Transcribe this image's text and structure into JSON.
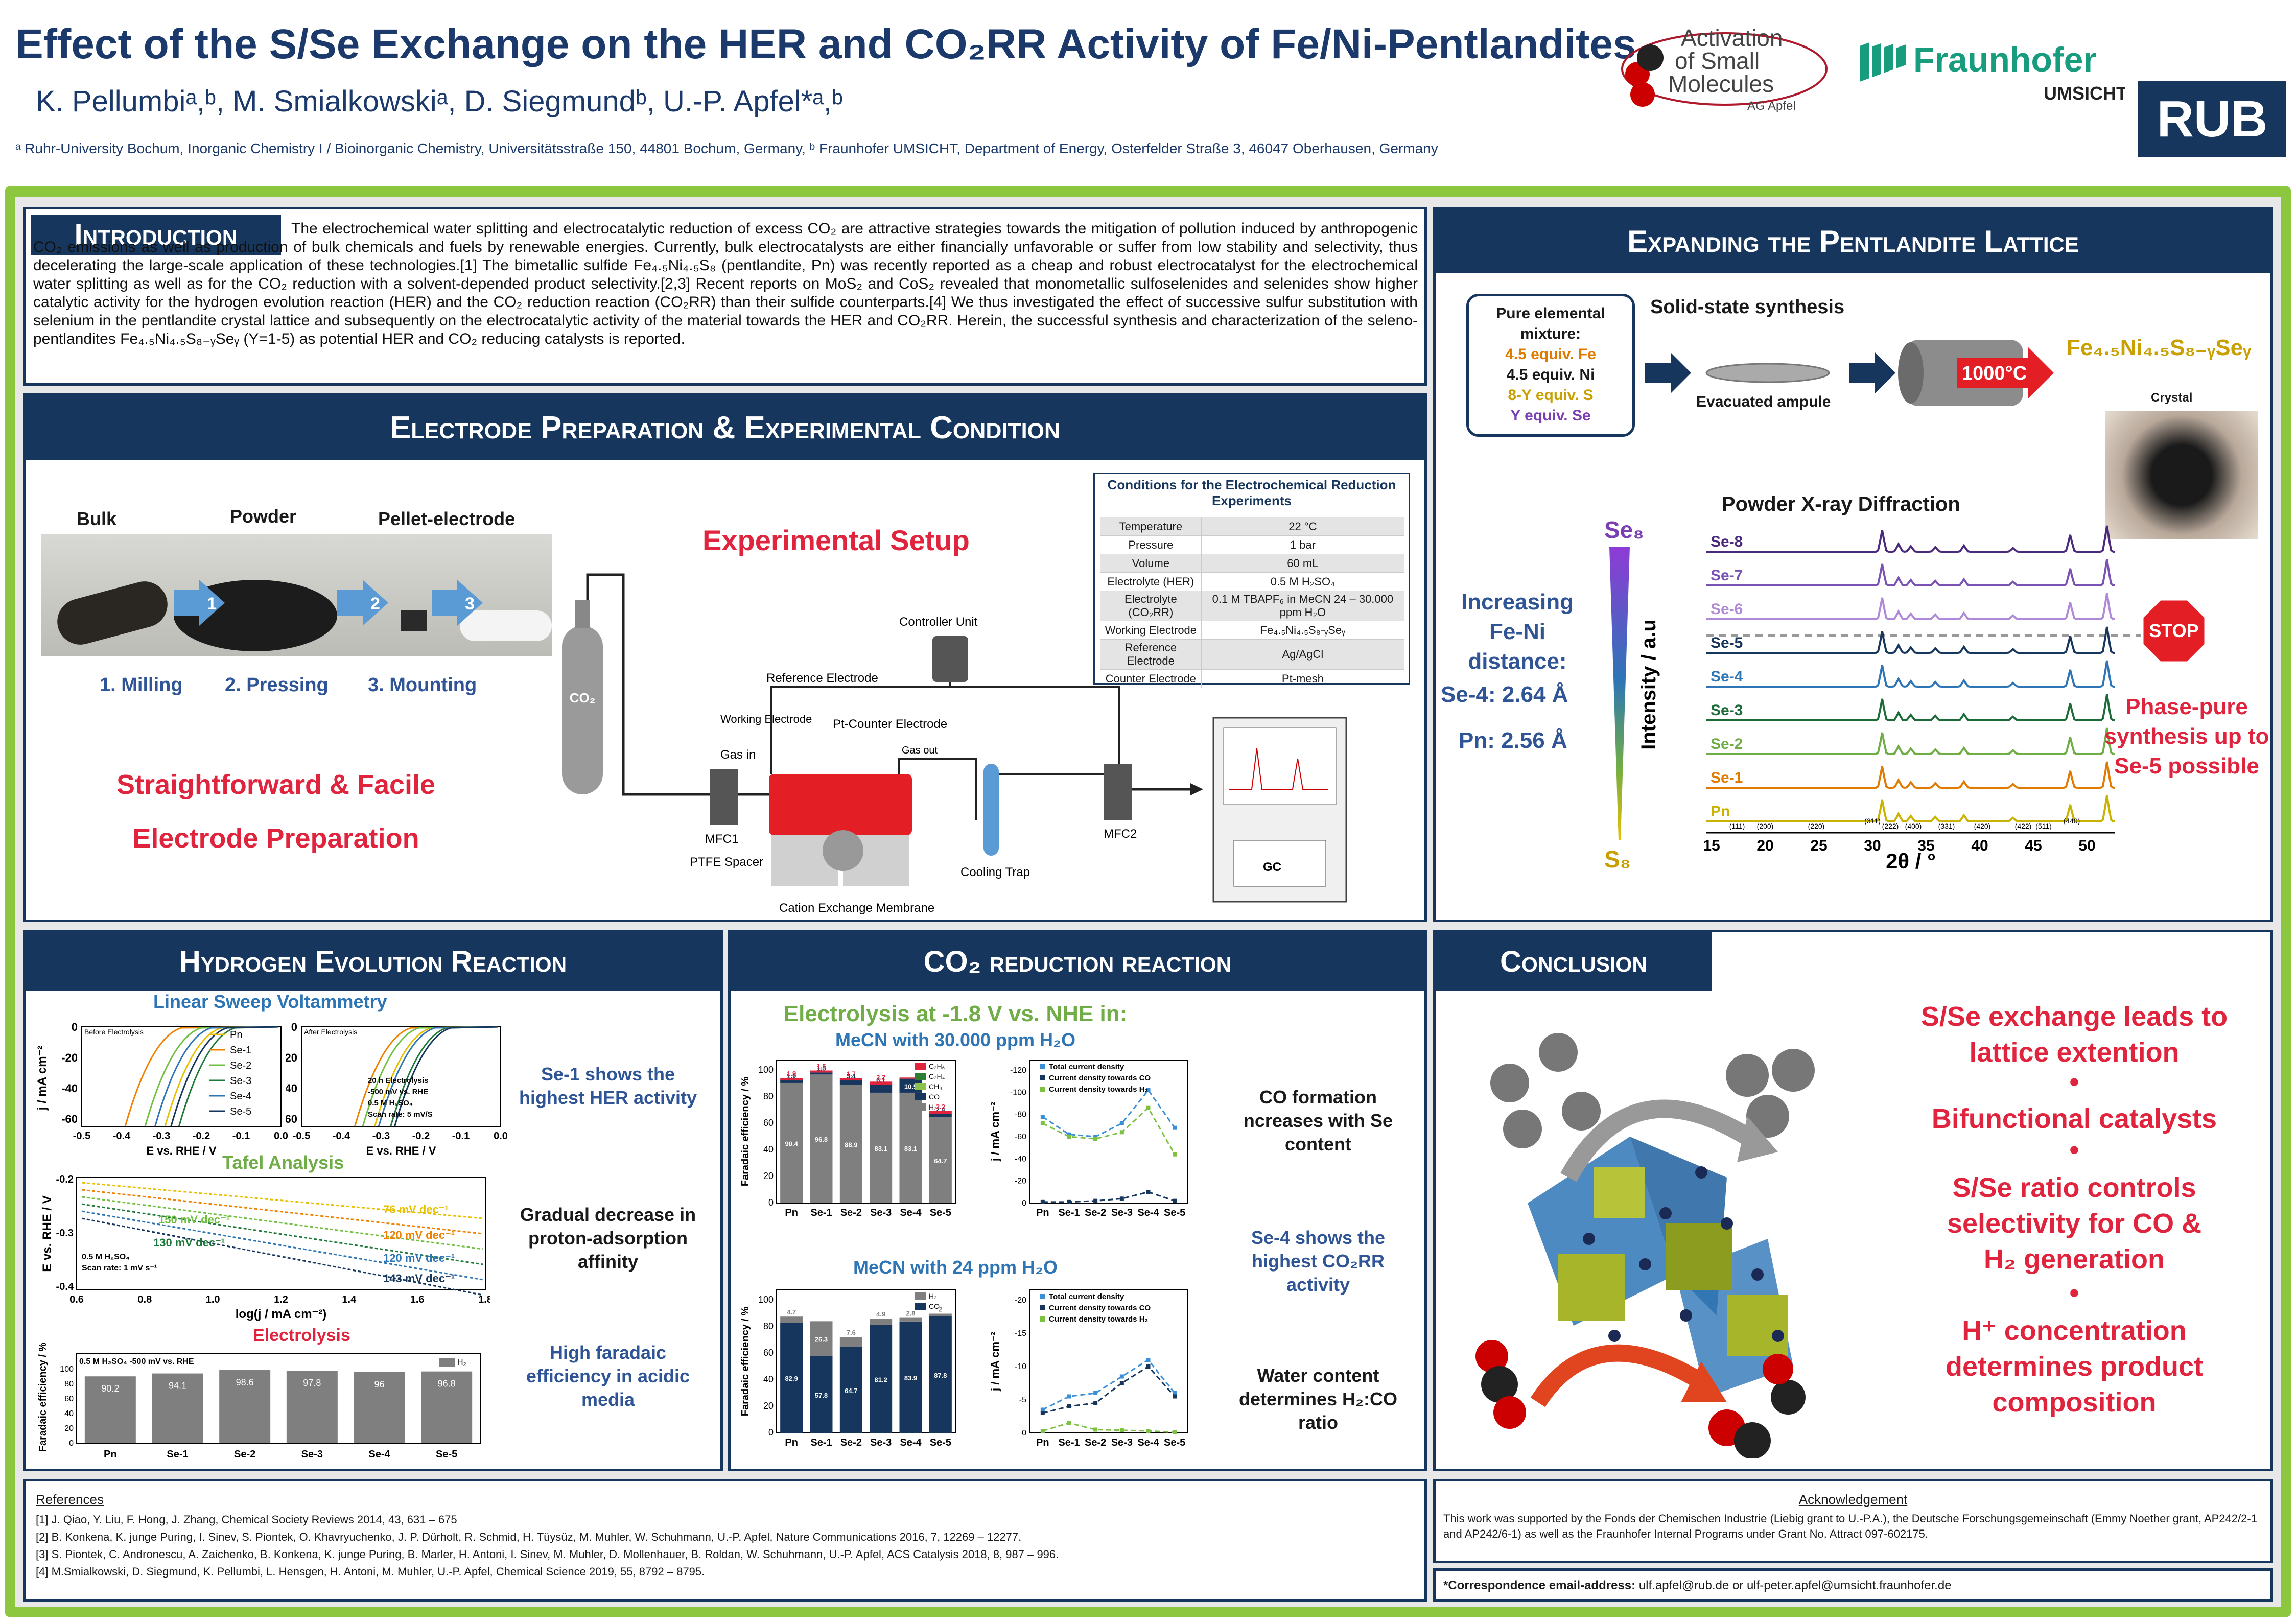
{
  "header": {
    "title": "Effect of the S/Se Exchange on the HER and CO₂RR Activity of Fe/Ni-Pentlandites",
    "authors": "K. Pellumbiᵃ,ᵇ, M. Smialkowskiᵃ, D. Siegmundᵇ, U.-P. Apfel*ᵃ,ᵇ",
    "affiliations": "ᵃ Ruhr-University Bochum, Inorganic Chemistry I / Bioinorganic Chemistry, Universitätsstraße 150, 44801 Bochum, Germany, ᵇ Fraunhofer UMSICHT, Department of Energy, Osterfelder Straße 3, 46047 Oberhausen, Germany",
    "logo_aosm_line1": "Activation",
    "logo_aosm_line2": "of Small",
    "logo_aosm_line3": "Molecules",
    "logo_aosm_line4": "AG Apfel",
    "logo_fh_name": "Fraunhofer",
    "logo_fh_sub": "UMSICHT",
    "logo_rub": "RUB"
  },
  "intro": {
    "heading": "Introduction",
    "text": "The electrochemical water splitting and electrocatalytic reduction of excess CO₂ are attractive strategies towards the mitigation of pollution induced by anthropogenic CO₂ emissions as well as production of bulk chemicals and fuels by renewable energies. Currently, bulk electrocatalysts are either financially unfavorable or suffer from low stability and selectivity, thus decelerating the large-scale application of these technologies.[1] The bimetallic sulfide Fe₄.₅Ni₄.₅S₈ (pentlandite, Pn) was recently reported as a cheap and robust electrocatalyst for the electrochemical water splitting as well as for the CO₂ reduction with a solvent-depended product selectivity.[2,3] Recent reports on MoS₂ and CoS₂ revealed that monometallic sulfoselenides and selenides show higher catalytic activity for the hydrogen evolution reaction (HER) and the CO₂ reduction reaction (CO₂RR) than their sulfide counterparts.[4] We thus investigated the effect of successive sulfur substitution with selenium in the pentlandite crystal lattice and subsequently on the electrocatalytic activity of the material towards the HER and CO₂RR. Herein, the successful synthesis and characterization of the seleno-pentlandites Fe₄.₅Ni₄.₅S₈₋ᵧSeᵧ (Y=1-5) as potential HER and CO₂ reducing catalysts is reported."
  },
  "electrode": {
    "heading": "Electrode Preparation & Experimental Condition",
    "labels": [
      "Bulk",
      "Powder",
      "Pellet-electrode"
    ],
    "steps": [
      "1. Milling",
      "2. Pressing",
      "3. Mounting"
    ],
    "arrow_nums": [
      "1",
      "2",
      "3"
    ],
    "slogan1": "Straightforward & Facile",
    "slogan2": "Electrode Preparation",
    "setup_title": "Experimental Setup",
    "setup_labels": {
      "controller": "Controller Unit",
      "ref": "Reference Electrode",
      "working": "Working Electrode",
      "counter": "Pt-Counter Electrode",
      "gas_in": "Gas in",
      "gas_out": "Gas out",
      "mfc1": "MFC1",
      "mfc2": "MFC2",
      "cooling": "Cooling Trap",
      "ptfe": "PTFE Spacer",
      "membrane": "Cation Exchange Membrane",
      "co2": "CO₂",
      "gc": "GC"
    },
    "conditions_title": "Conditions for the Electrochemical Reduction Experiments",
    "conditions": [
      [
        "Temperature",
        "22 °C"
      ],
      [
        "Pressure",
        "1 bar"
      ],
      [
        "Volume",
        "60 mL"
      ],
      [
        "Electrolyte (HER)",
        "0.5 M H₂SO₄"
      ],
      [
        "Electrolyte (CO₂RR)",
        "0.1 M TBAPF₆ in MeCN 24 – 30.000 ppm H₂O"
      ],
      [
        "Working Electrode",
        "Fe₄.₅Ni₄.₅S₈-ᵧSeᵧ"
      ],
      [
        "Reference Electrode",
        "Ag/AgCl"
      ],
      [
        "Counter Electrode",
        "Pt-mesh"
      ]
    ]
  },
  "lattice": {
    "heading": "Expanding the Pentlandite Lattice",
    "box_title": "Pure elemental mixture:",
    "box_lines": [
      "4.5 equiv. Fe",
      "4.5 equiv. Ni",
      "8-Y equiv. S",
      "Y equiv. Se"
    ],
    "solid_state": "Solid-state synthesis",
    "ampule": "Evacuated ampule",
    "temp": "1000°C",
    "product": "Fe₄.₅Ni₄.₅S₈₋ᵧSeᵧ",
    "crystal": "Crystal",
    "pxrd_title": "Powder X-ray Diffraction",
    "se8": "Se₈",
    "s8": "S₈",
    "increasing": "Increasing Fe-Ni distance:",
    "se4": "Se-4: 2.64 Å",
    "pn": "Pn: 2.56 Å",
    "ylabel": "Intensity / a.u",
    "xlabel": "2θ / °",
    "stop": "STOP",
    "phase_pure": "Phase-pure synthesis up to Se-5 possible",
    "series": [
      "Se-8",
      "Se-7",
      "Se-6",
      "Se-5",
      "Se-4",
      "Se-3",
      "Se-2",
      "Se-1",
      "Pn"
    ],
    "series_colors": [
      "#4a2a7a",
      "#7a52b3",
      "#b08ad8",
      "#17365d",
      "#2e75b6",
      "#1e6b3a",
      "#70ad47",
      "#e07b00",
      "#c9b300"
    ],
    "xticks": [
      "15",
      "20",
      "25",
      "30",
      "35",
      "40",
      "45",
      "50"
    ],
    "hkl": [
      "(111)",
      "(200)",
      "(220)",
      "(311)",
      "(222)",
      "(400)",
      "(331)",
      "(420)",
      "(422)",
      "(511)",
      "(440)"
    ]
  },
  "her": {
    "heading": "Hydrogen Evolution Reaction",
    "lsv_title": "Linear Sweep Voltammetry",
    "lsv_before": "Before Electrolysis",
    "lsv_after": "After Electrolysis",
    "lsv_legend": [
      "Pn",
      "Se-1",
      "Se-2",
      "Se-3",
      "Se-4",
      "Se-5"
    ],
    "lsv_colors": [
      "#e8c000",
      "#f08000",
      "#70c040",
      "#1e7a3a",
      "#2e75b6",
      "#17365d"
    ],
    "lsv_yticks": [
      "0",
      "-20",
      "-40",
      "-60"
    ],
    "lsv_xticks": [
      "-0.5",
      "-0.4",
      "-0.3",
      "-0.2",
      "-0.1",
      "0.0"
    ],
    "lsv_ylabel": "j / mA cm⁻²",
    "lsv_xlabel": "E vs. RHE / V",
    "lsv_note": [
      "20 h Electrolysis",
      "-500 mV vs. RHE",
      "0.5 M H₂SO₄",
      "Scan rate: 5 mV/S"
    ],
    "tafel_title": "Tafel Analysis",
    "tafel_values": [
      "76 mV dec⁻¹",
      "120 mV dec⁻¹",
      "150 mV dec⁻¹",
      "130 mV dec⁻¹",
      "120 mV dec⁻¹",
      "143 mV dec⁻¹"
    ],
    "tafel_note": [
      "0.5 M H₂SO₄",
      "Scan rate: 1 mV s⁻¹"
    ],
    "tafel_xlabel": "log(j / mA cm⁻²)",
    "tafel_ylabel": "E vs. RHE / V",
    "tafel_xticks": [
      "0.6",
      "0.8",
      "1.0",
      "1.2",
      "1.4",
      "1.6",
      "1.8"
    ],
    "tafel_yticks": [
      "-0.2",
      "-0.3",
      "-0.4"
    ],
    "electrolysis_title": "Electrolysis",
    "electrolysis_note": "0.5 M H₂SO₄ -500 mV vs. RHE",
    "electrolysis_legend": "H₂",
    "electrolysis_ylabel": "Faradaic efficiency / %",
    "electrolysis_categories": [
      "Pn",
      "Se-1",
      "Se-2",
      "Se-3",
      "Se-4",
      "Se-5"
    ],
    "electrolysis_values": [
      90.2,
      94.1,
      98.6,
      97.8,
      96.0,
      96.8
    ],
    "electrolysis_yticks": [
      "0",
      "20",
      "40",
      "60",
      "80",
      "100"
    ],
    "comment1": "Se-1 shows the highest HER activity",
    "comment2": "Gradual decrease in proton-adsorption affinity",
    "comment3": "High faradaic efficiency in acidic media"
  },
  "co2rr": {
    "heading": "CO₂ reduction reaction",
    "electrolysis_title": "Electrolysis at -1.8 V vs. NHE in:",
    "subtitle1": "MeCN with 30.000 ppm H₂O",
    "subtitle2": "MeCN with 24 ppm H₂O",
    "categories": [
      "Pn",
      "Se-1",
      "Se-2",
      "Se-3",
      "Se-4",
      "Se-5"
    ],
    "fe_ylabel": "Faradaic efficiency / %",
    "j_ylabel": "j / mA cm⁻²",
    "yticks_fe": [
      "0",
      "20",
      "40",
      "60",
      "80",
      "100"
    ],
    "legend1": [
      "C₂H₆",
      "C₂H₄",
      "CH₄",
      "CO",
      "H₂"
    ],
    "legend1_colors": [
      "#e0243d",
      "#2e7d32",
      "#8bc34a",
      "#17365d",
      "#7f7f7f"
    ],
    "legend2": [
      "H₂",
      "CO"
    ],
    "line_legend": [
      "Total current density",
      "Current density towards CO",
      "Current density towards H₂"
    ],
    "line_colors": [
      "#3a8fd8",
      "#17365d",
      "#7dc142"
    ],
    "chart_data": [
      {
        "type": "bar",
        "title": "MeCN with 30.000 ppm H₂O",
        "categories": [
          "Pn",
          "Se-1",
          "Se-2",
          "Se-3",
          "Se-4",
          "Se-5"
        ],
        "series": [
          {
            "name": "H₂",
            "values": [
              90.4,
              96.8,
              88.9,
              83.1,
              83.1,
              64.7
            ]
          },
          {
            "name": "CO",
            "values": [
              1.9,
              1.5,
              3.4,
              6.1,
              10.5,
              2.4
            ]
          },
          {
            "name": "C₂H₆",
            "values": [
              1.9,
              1.5,
              1.7,
              2.2,
              0.9,
              2.2
            ]
          }
        ],
        "ylim": [
          0,
          100
        ]
      },
      {
        "type": "bar",
        "title": "MeCN with 24 ppm H₂O",
        "categories": [
          "Pn",
          "Se-1",
          "Se-2",
          "Se-3",
          "Se-4",
          "Se-5"
        ],
        "series": [
          {
            "name": "CO",
            "values": [
              82.9,
              57.8,
              64.7,
              81.2,
              83.9,
              87.8
            ]
          },
          {
            "name": "H₂",
            "values": [
              4.7,
              26.3,
              7.6,
              4.9,
              2.8,
              2.0
            ]
          }
        ],
        "ylim": [
          0,
          100
        ]
      },
      {
        "type": "line",
        "categories": [
          "Pn",
          "Se-1",
          "Se-2",
          "Se-3",
          "Se-4",
          "Se-5"
        ],
        "series": [
          {
            "name": "Total current density",
            "values": [
              -78,
              -62,
              -60,
              -72,
              -102,
              -68
            ]
          },
          {
            "name": "Current density towards CO",
            "values": [
              -1,
              -1,
              -2,
              -4,
              -10,
              -2
            ]
          },
          {
            "name": "Current density towards H₂",
            "values": [
              -72,
              -60,
              -58,
              -64,
              -86,
              -44
            ]
          }
        ],
        "ylim": [
          -120,
          0
        ]
      },
      {
        "type": "line",
        "categories": [
          "Pn",
          "Se-1",
          "Se-2",
          "Se-3",
          "Se-4",
          "Se-5"
        ],
        "series": [
          {
            "name": "Total current density",
            "values": [
              -3.5,
              -5.5,
              -6,
              -8.5,
              -11,
              -6
            ]
          },
          {
            "name": "Current density towards CO",
            "values": [
              -3,
              -4,
              -4.5,
              -7.5,
              -10,
              -5.5
            ]
          },
          {
            "name": "Current density towards H₂",
            "values": [
              -0.3,
              -1.5,
              -0.5,
              -0.4,
              -0.3,
              -0.1
            ]
          }
        ],
        "ylim": [
          -20,
          0
        ]
      }
    ],
    "j1_yticks": [
      "0",
      "-20",
      "-40",
      "-60",
      "-80",
      "-100",
      "-120"
    ],
    "j2_yticks": [
      "0",
      "-5",
      "-10",
      "-15",
      "-20"
    ],
    "comment1": "CO formation ncreases with Se content",
    "comment2": "Se-4 shows the highest CO₂RR activity",
    "comment3": "Water content determines H₂:CO ratio"
  },
  "conclusion": {
    "heading": "Conclusion",
    "points": [
      "S/Se exchange leads to lattice extention",
      "Bifunctional catalysts",
      "S/Se ratio controls selectivity for CO & H₂ generation",
      "H⁺ concentration determines product composition"
    ],
    "bullet": "•"
  },
  "references": {
    "heading": "References",
    "items": [
      "[1]   J. Qiao, Y. Liu, F. Hong, J. Zhang, Chemical Society Reviews 2014, 43, 631 – 675",
      "[2]   B. Konkena, K. junge Puring, I. Sinev, S. Piontek, O. Khavryuchenko, J. P. Dürholt, R. Schmid, H.     Tüysüz, M. Muhler, W. Schuhmann, U.-P. Apfel, Nature Communications 2016, 7, 12269 – 12277.",
      "[3]   S. Piontek, C. Andronescu, A. Zaichenko, B. Konkena, K. junge Puring, B. Marler, H. Antoni, I. Sinev,      M. Muhler, D. Mollenhauer, B. Roldan, W. Schuhmann, U.-P. Apfel, ACS Catalysis 2018, 8, 987 – 996.",
      "[4] M.Smialkowski, D. Siegmund, K. Pellumbi, L. Hensgen, H. Antoni, M. Muhler, U.-P. Apfel, Chemical Science 2019, 55, 8792 – 8795."
    ]
  },
  "ack": {
    "heading": "Acknowledgement",
    "text": "This work was supported by the Fonds der Chemischen Industrie (Liebig grant to U.-P.A.), the Deutsche Forschungsgemeinschaft (Emmy Noether grant, AP242/2-1 and AP242/6-1) as well as the Fraunhofer Internal Programs under Grant No. Attract 097-602175.",
    "email_label": "*Correspondence email-address:",
    "email": "ulf.apfel@rub.de or ulf-peter.apfel@umsicht.fraunhofer.de"
  },
  "colors": {
    "navy": "#17365d",
    "red": "#e0243d",
    "green": "#8dc63f",
    "blue": "#2f5597"
  }
}
